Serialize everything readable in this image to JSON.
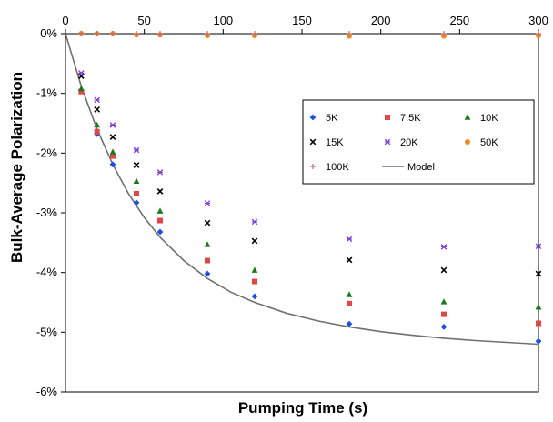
{
  "chart_data": {
    "type": "scatter",
    "title": "",
    "xlabel": "Pumping Time (s)",
    "ylabel": "Bulk-Average Polarization",
    "x_axis_position": "top",
    "xlim": [
      0,
      300
    ],
    "ylim": [
      -6,
      0
    ],
    "x_ticks": [
      "0",
      "50",
      "100",
      "150",
      "200",
      "250",
      "300"
    ],
    "y_ticks": [
      "0%",
      "-1%",
      "-2%",
      "-3%",
      "-4%",
      "-5%",
      "-6%"
    ],
    "grid": false,
    "legend_position": "center-right",
    "x": [
      10,
      20,
      30,
      45,
      60,
      90,
      120,
      180,
      240,
      300
    ],
    "series": [
      {
        "name": "5K",
        "marker": "diamond",
        "color": "#1f4fe0",
        "values": [
          -0.95,
          -1.68,
          -2.19,
          -2.83,
          -3.32,
          -4.02,
          -4.4,
          -4.86,
          -4.91,
          -5.15
        ]
      },
      {
        "name": "7.5K",
        "marker": "square",
        "color": "#e04848",
        "values": [
          -0.97,
          -1.64,
          -2.05,
          -2.68,
          -3.13,
          -3.8,
          -4.15,
          -4.52,
          -4.7,
          -4.85
        ]
      },
      {
        "name": "10K",
        "marker": "triangle",
        "color": "#1a7a1a",
        "values": [
          -0.92,
          -1.53,
          -1.98,
          -2.47,
          -2.97,
          -3.53,
          -3.96,
          -4.37,
          -4.49,
          -4.58
        ]
      },
      {
        "name": "15K",
        "marker": "x",
        "color": "#000000",
        "values": [
          -0.71,
          -1.27,
          -1.73,
          -2.2,
          -2.64,
          -3.17,
          -3.47,
          -3.79,
          -3.96,
          -4.02
        ]
      },
      {
        "name": "20K",
        "marker": "star",
        "color": "#7a3ad8",
        "values": [
          -0.66,
          -1.11,
          -1.53,
          -1.95,
          -2.32,
          -2.84,
          -3.15,
          -3.44,
          -3.57,
          -3.56
        ]
      },
      {
        "name": "50K",
        "marker": "circle",
        "color": "#f08a24",
        "values": [
          0.0,
          0.0,
          0.0,
          -0.02,
          -0.02,
          -0.03,
          -0.03,
          -0.04,
          -0.04,
          -0.03
        ]
      },
      {
        "name": "100K",
        "marker": "plus",
        "color": "#c06a6a",
        "values": [
          0.0,
          0.0,
          0.0,
          0.0,
          0.0,
          0.0,
          0.0,
          0.0,
          0.0,
          0.0
        ]
      }
    ],
    "model": {
      "name": "Model",
      "color": "#707070",
      "x": [
        0,
        10,
        20,
        30,
        40,
        50,
        60,
        75,
        90,
        105,
        120,
        140,
        160,
        180,
        200,
        220,
        240,
        260,
        280,
        300
      ],
      "y": [
        0,
        -0.88,
        -1.6,
        -2.19,
        -2.68,
        -3.08,
        -3.41,
        -3.8,
        -4.1,
        -4.33,
        -4.5,
        -4.68,
        -4.81,
        -4.91,
        -4.99,
        -5.05,
        -5.1,
        -5.14,
        -5.17,
        -5.2
      ]
    }
  }
}
